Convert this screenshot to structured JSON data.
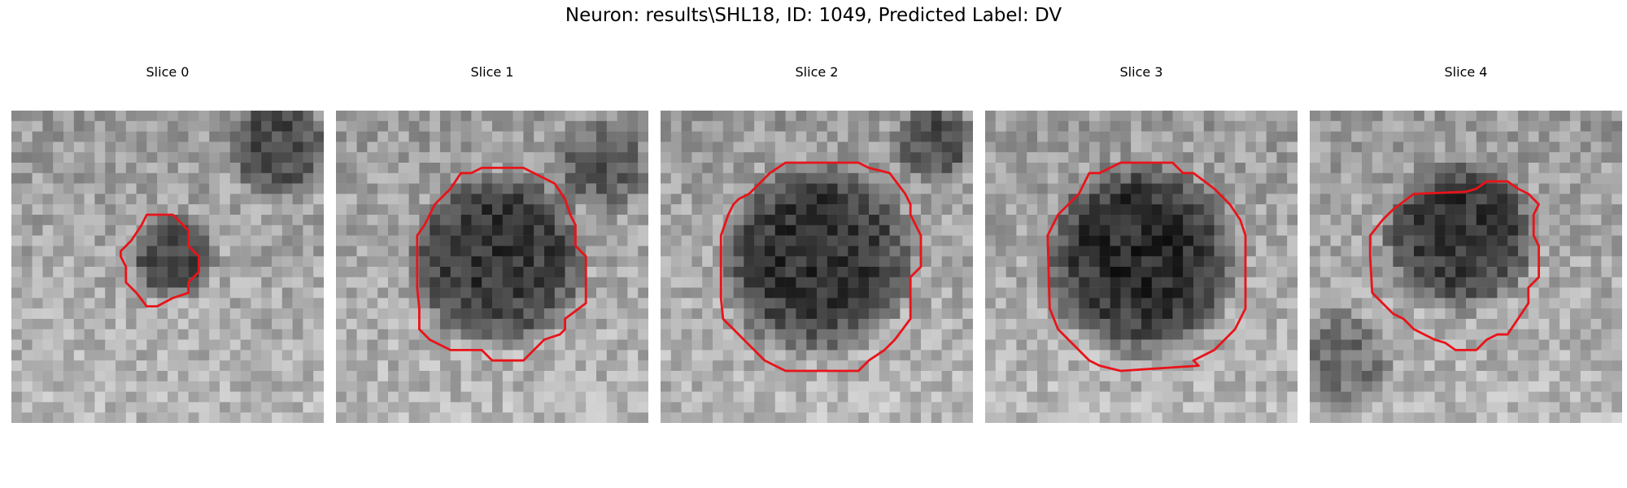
{
  "figure": {
    "title": "Neuron: results\\SHL18, ID: 1049, Predicted Label: DV"
  },
  "panels": [
    {
      "label": "Slice 0",
      "outline_color": "#e8141a",
      "seed": 11,
      "blob": [
        0.52,
        0.47,
        0.14,
        0.65
      ],
      "corner": [
        0.85,
        0.12,
        0.18,
        0.55
      ]
    },
    {
      "label": "Slice 1",
      "outline_color": "#e8141a",
      "seed": 23,
      "blob": [
        0.52,
        0.48,
        0.3,
        0.72
      ],
      "corner": [
        0.85,
        0.18,
        0.16,
        0.45
      ]
    },
    {
      "label": "Slice 2",
      "outline_color": "#e8141a",
      "seed": 37,
      "blob": [
        0.5,
        0.48,
        0.33,
        0.75
      ],
      "corner": [
        0.88,
        0.1,
        0.14,
        0.55
      ]
    },
    {
      "label": "Slice 3",
      "outline_color": "#e8141a",
      "seed": 51,
      "blob": [
        0.5,
        0.48,
        0.33,
        0.8
      ],
      "corner": [
        0.0,
        0.0,
        0.0,
        0.0
      ]
    },
    {
      "label": "Slice 4",
      "outline_color": "#e8141a",
      "seed": 69,
      "blob": [
        0.48,
        0.4,
        0.26,
        0.72
      ],
      "corner": [
        0.1,
        0.8,
        0.18,
        0.45
      ]
    }
  ]
}
